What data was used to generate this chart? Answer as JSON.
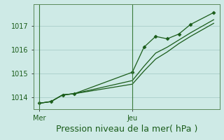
{
  "background_color": "#ceeae6",
  "grid_color": "#aaceca",
  "line_color": "#1a5c1a",
  "marker_color": "#1a5c1a",
  "xlabel": "Pression niveau de la mer( hPa )",
  "xlabel_fontsize": 9,
  "tick_label_fontsize": 7,
  "x_tick_labels": [
    "Mer",
    "Jeu"
  ],
  "x_tick_positions": [
    0,
    8
  ],
  "ylim": [
    1013.5,
    1017.9
  ],
  "yticks": [
    1014,
    1015,
    1016,
    1017
  ],
  "series1_x": [
    0,
    1,
    2,
    3,
    8,
    9,
    10,
    11,
    12,
    13,
    15
  ],
  "series1_y": [
    1013.75,
    1013.82,
    1014.1,
    1014.15,
    1015.05,
    1016.1,
    1016.55,
    1016.45,
    1016.65,
    1017.05,
    1017.55
  ],
  "series2_x": [
    0,
    1,
    2,
    3,
    8,
    9,
    10,
    11,
    12,
    13,
    15
  ],
  "series2_y": [
    1013.75,
    1013.82,
    1014.1,
    1014.15,
    1014.7,
    1015.3,
    1015.85,
    1016.1,
    1016.4,
    1016.7,
    1017.25
  ],
  "series3_x": [
    0,
    1,
    2,
    3,
    8,
    9,
    10,
    11,
    12,
    13,
    15
  ],
  "series3_y": [
    1013.75,
    1013.82,
    1014.1,
    1014.15,
    1014.55,
    1015.1,
    1015.6,
    1015.9,
    1016.25,
    1016.55,
    1017.1
  ],
  "vline_x": [
    0,
    8
  ],
  "xlim": [
    -0.5,
    15.5
  ],
  "spine_color": "#5a8a5a",
  "vline_color": "#3a7a3a"
}
